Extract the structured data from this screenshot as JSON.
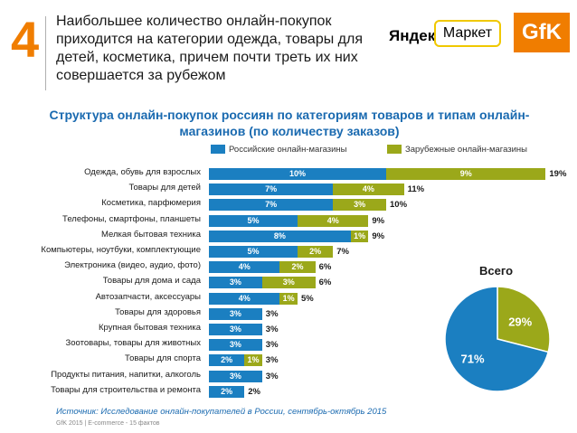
{
  "header": {
    "slide_number": "4",
    "headline": "Наибольшее количество онлайн-покупок приходится на категории одежда, товары для детей, косметика, причем почти треть их них совершается за рубежом",
    "logo_yandex": "Яндекс",
    "logo_market": "Маркет",
    "logo_gfk": "GfK"
  },
  "chart_data": [
    {
      "type": "bar",
      "stacked": true,
      "orientation": "horizontal",
      "title": "Структура онлайн-покупок россиян по категориям товаров и типам онлайн-магазинов (по количеству заказов)",
      "unit": "%",
      "categories": [
        "Одежда, обувь для взрослых",
        "Товары для детей",
        "Косметика, парфюмерия",
        "Телефоны, смартфоны, планшеты",
        "Мелкая бытовая техника",
        "Компьютеры, ноутбуки, комплектующие",
        "Электроника (видео, аудио, фото)",
        "Товары для дома и сада",
        "Автозапчасти, аксессуары",
        "Товары для здоровья",
        "Крупная бытовая техника",
        "Зоотовары, товары для животных",
        "Товары для спорта",
        "Продукты питания, напитки, алкоголь",
        "Товары для строительства и ремонта"
      ],
      "series": [
        {
          "name": "Российские онлайн-магазины",
          "color": "#1b7fc1",
          "values": [
            10,
            7,
            7,
            5,
            8,
            5,
            4,
            3,
            4,
            3,
            3,
            3,
            2,
            3,
            2
          ]
        },
        {
          "name": "Зарубежные онлайн-магазины",
          "color": "#9ba81a",
          "values": [
            9,
            4,
            3,
            4,
            1,
            2,
            2,
            3,
            1,
            0,
            0,
            0,
            1,
            0,
            0
          ]
        }
      ],
      "totals": [
        19,
        11,
        10,
        9,
        9,
        7,
        6,
        6,
        5,
        3,
        3,
        3,
        3,
        3,
        2
      ],
      "xlim": [
        0,
        20
      ]
    },
    {
      "type": "pie",
      "title": "Всего",
      "slices": [
        {
          "name": "Российские онлайн-магазины",
          "value": 71,
          "color": "#1b7fc1"
        },
        {
          "name": "Зарубежные онлайн-магазины",
          "value": 29,
          "color": "#9ba81a"
        }
      ]
    }
  ],
  "footer": {
    "source": "Источник: Исследование онлайн-покупателей в России, сентябрь-октябрь 2015",
    "meta": "GfK 2015 | E-commerce - 15 фактов"
  }
}
